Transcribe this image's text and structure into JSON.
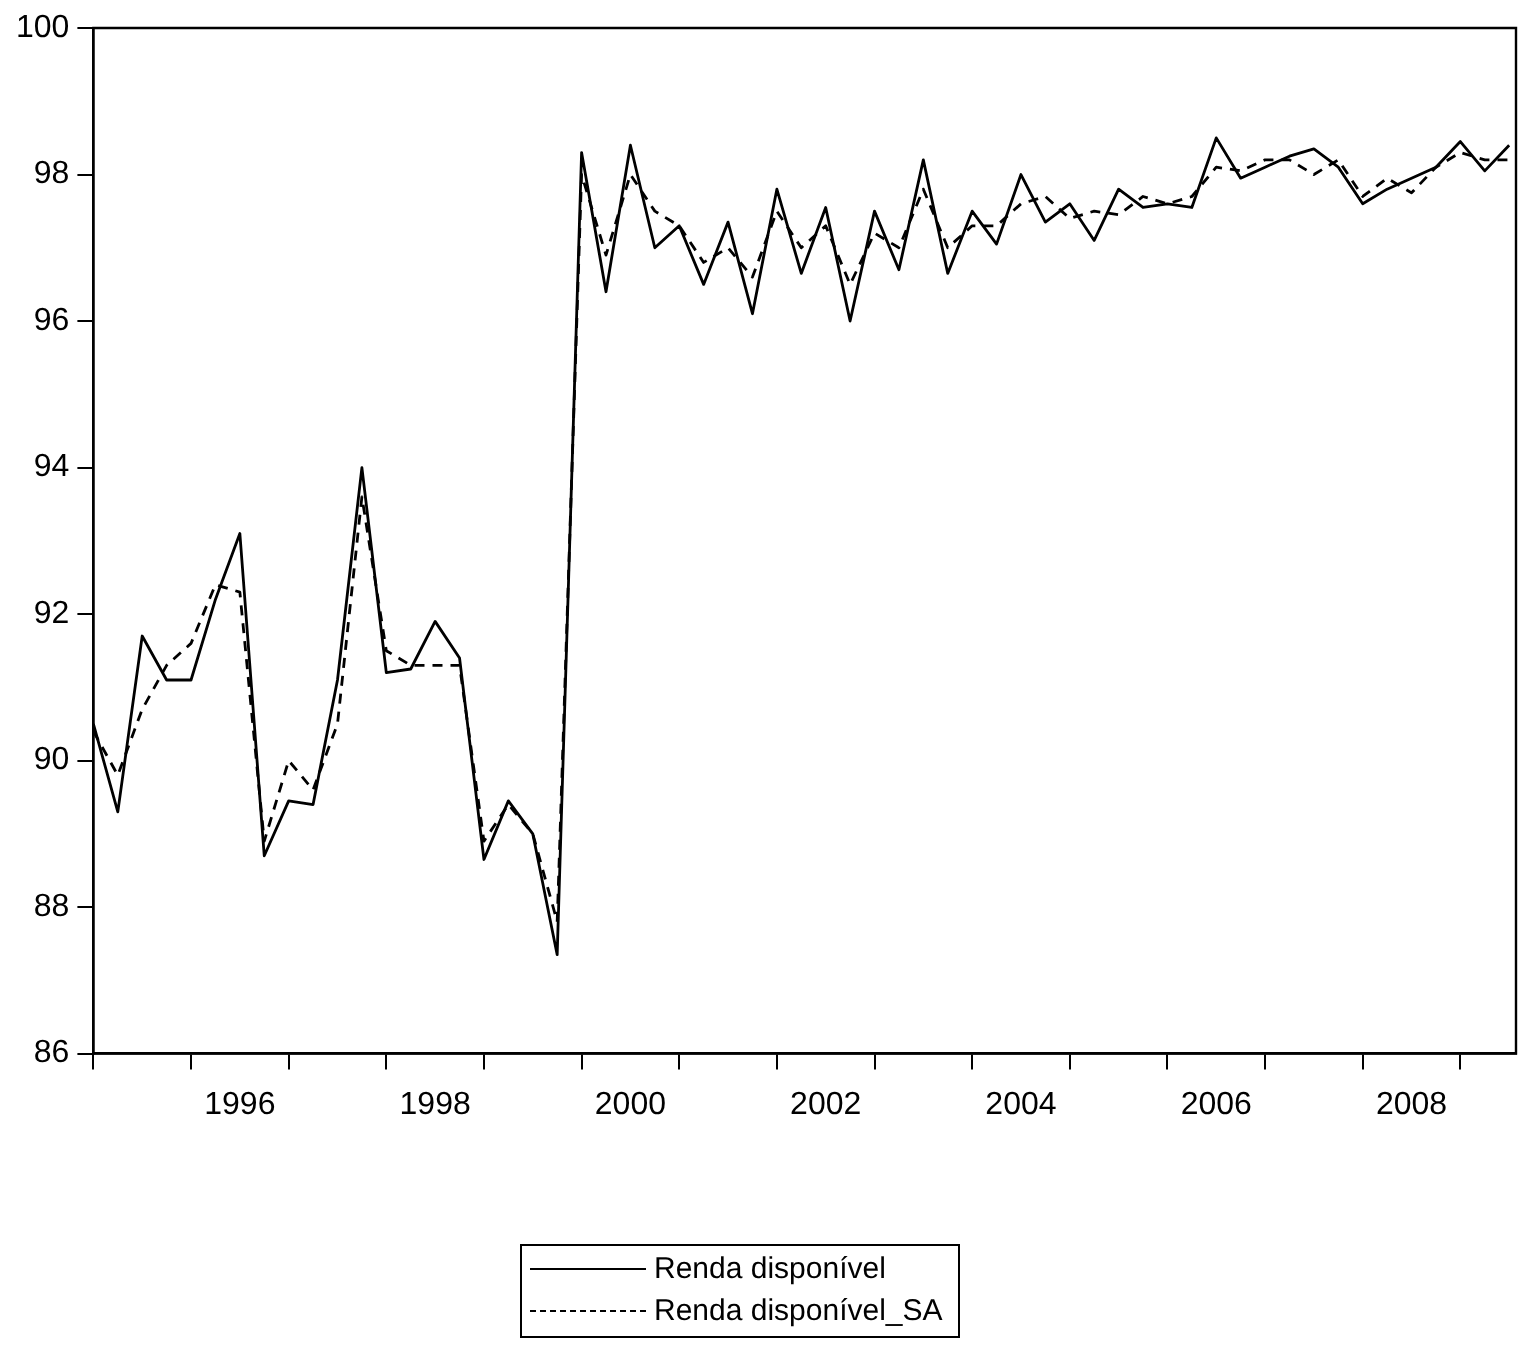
{
  "chart_data": {
    "type": "line",
    "x": [
      1995,
      1995.25,
      1995.5,
      1995.75,
      1996,
      1996.25,
      1996.5,
      1996.75,
      1997,
      1997.25,
      1997.5,
      1997.75,
      1998,
      1998.25,
      1998.5,
      1998.75,
      1999,
      1999.25,
      1999.5,
      1999.75,
      2000,
      2000.25,
      2000.5,
      2000.75,
      2001,
      2001.25,
      2001.5,
      2001.75,
      2002,
      2002.25,
      2002.5,
      2002.75,
      2003,
      2003.25,
      2003.5,
      2003.75,
      2004,
      2004.25,
      2004.5,
      2004.75,
      2005,
      2005.25,
      2005.5,
      2005.75,
      2006,
      2006.25,
      2006.5,
      2006.75,
      2007,
      2007.25,
      2007.5,
      2007.75,
      2008,
      2008.25,
      2008.5,
      2008.75,
      2009,
      2009.25,
      2009.5
    ],
    "series": [
      {
        "name": "Renda disponível",
        "color": "#000000",
        "line_style": "solid",
        "values": [
          90.5,
          89.3,
          91.7,
          91.1,
          91.1,
          92.2,
          93.1,
          88.7,
          89.45,
          89.4,
          91.1,
          94.0,
          91.2,
          91.25,
          91.9,
          91.4,
          88.65,
          89.45,
          89.0,
          87.35,
          98.3,
          96.4,
          98.4,
          97.0,
          97.3,
          96.5,
          97.35,
          96.1,
          97.8,
          96.65,
          97.55,
          96.0,
          97.5,
          96.7,
          98.2,
          96.65,
          97.5,
          97.05,
          98.0,
          97.35,
          97.6,
          97.1,
          97.8,
          97.55,
          97.6,
          97.55,
          98.5,
          97.95,
          98.1,
          98.25,
          98.35,
          98.1,
          97.6,
          97.8,
          97.95,
          98.1,
          98.45,
          98.05,
          98.4
        ]
      },
      {
        "name": "Renda disponível_SA",
        "color": "#000000",
        "line_style": "dashed",
        "values": [
          90.4,
          89.8,
          90.7,
          91.3,
          91.6,
          92.4,
          92.3,
          88.9,
          90.0,
          89.6,
          90.5,
          93.6,
          91.5,
          91.3,
          91.3,
          91.3,
          88.9,
          89.4,
          89.0,
          87.8,
          98.0,
          96.9,
          98.0,
          97.5,
          97.3,
          96.8,
          97.0,
          96.6,
          97.5,
          97.0,
          97.3,
          96.5,
          97.2,
          97.0,
          97.8,
          97.0,
          97.3,
          97.3,
          97.6,
          97.7,
          97.4,
          97.5,
          97.45,
          97.7,
          97.6,
          97.7,
          98.1,
          98.05,
          98.2,
          98.2,
          98.0,
          98.2,
          97.7,
          97.95,
          97.75,
          98.1,
          98.3,
          98.2,
          98.2
        ]
      }
    ],
    "xlim": [
      1995,
      2009.57
    ],
    "xticks": [
      {
        "value": 1995,
        "label": null
      },
      {
        "value": 1996,
        "label": null
      },
      {
        "value": 1996.5,
        "label": "1996"
      },
      {
        "value": 1997,
        "label": null
      },
      {
        "value": 1998,
        "label": null
      },
      {
        "value": 1998.5,
        "label": "1998"
      },
      {
        "value": 1999,
        "label": null
      },
      {
        "value": 2000,
        "label": null
      },
      {
        "value": 2000.5,
        "label": "2000"
      },
      {
        "value": 2001,
        "label": null
      },
      {
        "value": 2002,
        "label": null
      },
      {
        "value": 2002.5,
        "label": "2002"
      },
      {
        "value": 2003,
        "label": null
      },
      {
        "value": 2004,
        "label": null
      },
      {
        "value": 2004.5,
        "label": "2004"
      },
      {
        "value": 2005,
        "label": null
      },
      {
        "value": 2006,
        "label": null
      },
      {
        "value": 2006.5,
        "label": "2006"
      },
      {
        "value": 2007,
        "label": null
      },
      {
        "value": 2008,
        "label": null
      },
      {
        "value": 2008.5,
        "label": "2008"
      },
      {
        "value": 2009,
        "label": null
      }
    ],
    "ylim": [
      86,
      100
    ],
    "yticks": [
      86,
      88,
      90,
      92,
      94,
      96,
      98,
      100
    ],
    "grid": false,
    "legend": "bottom",
    "marker": "none"
  }
}
